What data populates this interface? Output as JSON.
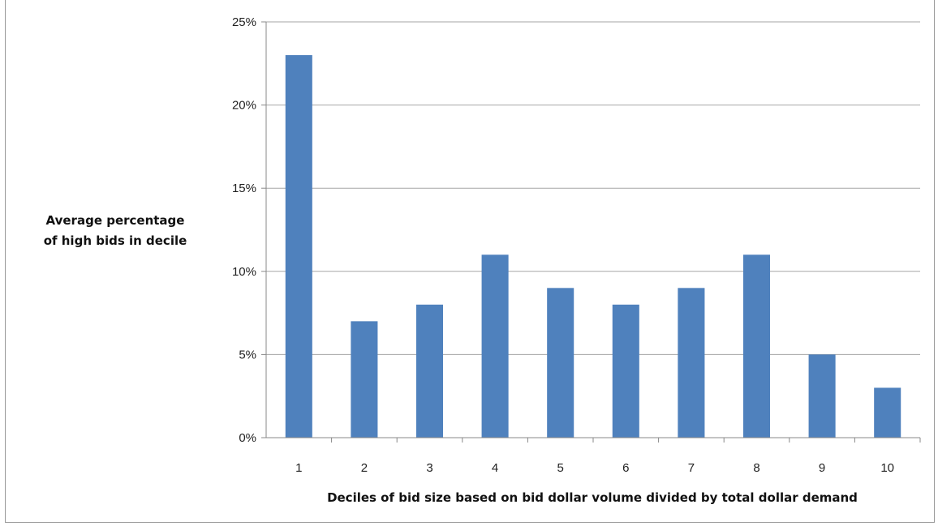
{
  "chart_data": {
    "type": "bar",
    "categories": [
      "1",
      "2",
      "3",
      "4",
      "5",
      "6",
      "7",
      "8",
      "9",
      "10"
    ],
    "values": [
      23,
      7,
      8,
      11,
      9,
      8,
      9,
      11,
      5,
      3
    ],
    "value_unit": "percent",
    "title": "",
    "xlabel": "Deciles of bid size based on bid dollar volume divided by total dollar demand",
    "ylabel_lines": [
      "Average percentage",
      "of high bids in decile"
    ],
    "ylim": [
      0,
      25
    ],
    "yticks": [
      "0%",
      "5%",
      "10%",
      "15%",
      "20%",
      "25%"
    ],
    "ytick_values": [
      0,
      5,
      10,
      15,
      20,
      25
    ],
    "grid": true,
    "legend": "none",
    "bar_color": "#4f81bd",
    "grid_color": "#a6a6a6"
  }
}
